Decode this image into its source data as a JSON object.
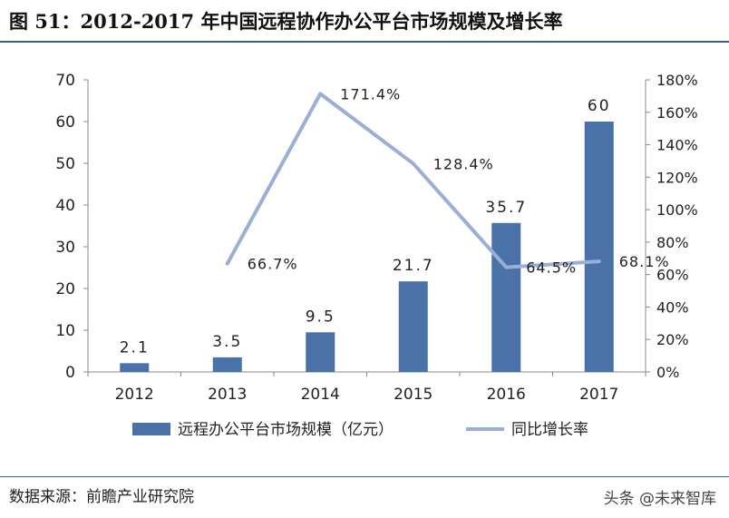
{
  "header": {
    "title": "图 51：2012-2017 年中国远程协作办公平台市场规模及增长率"
  },
  "footer": {
    "source": "数据来源：前瞻产业研究院",
    "watermark": "头条 @未来智库"
  },
  "chart_data": {
    "type": "bar",
    "categories": [
      "2012",
      "2013",
      "2014",
      "2015",
      "2016",
      "2017"
    ],
    "series": [
      {
        "name": "远程办公平台市场规模（亿元）",
        "type": "bar",
        "axis": "left",
        "values": [
          2.1,
          3.5,
          9.5,
          21.7,
          35.7,
          60
        ],
        "labels": [
          "2.1",
          "3.5",
          "9.5",
          "21.7",
          "35.7",
          "60"
        ],
        "color": "#4a72a8"
      },
      {
        "name": "同比增长率",
        "type": "line",
        "axis": "right",
        "values": [
          null,
          66.7,
          171.4,
          128.4,
          64.5,
          68.1
        ],
        "labels": [
          "",
          "66.7%",
          "171.4%",
          "128.4%",
          "64.5%",
          "68.1%"
        ],
        "color": "#9aafd6"
      }
    ],
    "y_left": {
      "min": 0,
      "max": 70,
      "ticks": [
        "0",
        "10",
        "20",
        "30",
        "40",
        "50",
        "60",
        "70"
      ]
    },
    "y_right": {
      "min": 0,
      "max": 180,
      "ticks": [
        "0%",
        "20%",
        "40%",
        "60%",
        "80%",
        "100%",
        "120%",
        "140%",
        "160%",
        "180%"
      ]
    },
    "grid": false,
    "legend_position": "bottom"
  }
}
